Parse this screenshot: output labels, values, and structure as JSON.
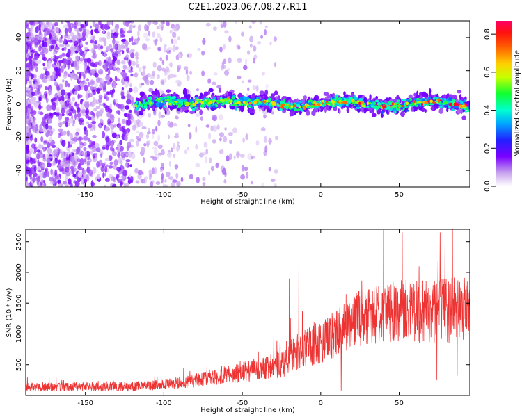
{
  "figure": {
    "title": "C2E1.2023.067.08.27.R11"
  },
  "chart_data": [
    {
      "type": "heatmap",
      "name": "spectrogram",
      "title": "",
      "xlabel": "Height of straight line (km)",
      "ylabel": "Frequency (Hz)",
      "xlim": [
        -188,
        95
      ],
      "ylim": [
        -50,
        50
      ],
      "xticks": [
        -150,
        -100,
        -50,
        0,
        50
      ],
      "xtick_labels": [
        "-150",
        "-100",
        "-50",
        "0",
        "50"
      ],
      "yticks": [
        -40,
        -20,
        0,
        20,
        40
      ],
      "ytick_labels": [
        "-40",
        "-20",
        "0",
        "20",
        "40"
      ],
      "signal": {
        "start_height": -118,
        "end_height": 95,
        "center_frequency": 0,
        "bandwidth_hz": 8,
        "peak_amplitude": 0.85
      },
      "noise_region": {
        "from_height": -188,
        "to_height": -28
      },
      "colorbar": {
        "label": "Normalized spectral amplitude",
        "range": [
          0.0,
          0.87
        ],
        "ticks": [
          0.0,
          0.2,
          0.4,
          0.6,
          0.8
        ],
        "tick_labels": [
          "0.0",
          "0.2",
          "0.4",
          "0.6",
          "0.8"
        ]
      }
    },
    {
      "type": "line",
      "name": "snr",
      "title": "",
      "xlabel": "Height of straight line (km)",
      "ylabel": "SNR (10 * v/v)",
      "xlim": [
        -188,
        95
      ],
      "ylim": [
        0,
        2700
      ],
      "xticks": [
        -150,
        -100,
        -50,
        0,
        50
      ],
      "xtick_labels": [
        "-150",
        "-100",
        "-50",
        "0",
        "50"
      ],
      "yticks": [
        500,
        1000,
        1500,
        2000,
        2500
      ],
      "ytick_labels": [
        "500",
        "1000",
        "1500",
        "2000",
        "2500"
      ],
      "color": "#ee3333",
      "trend": {
        "x": [
          -188,
          -150,
          -120,
          -100,
          -80,
          -60,
          -40,
          -25,
          -20,
          -10,
          0,
          10,
          20,
          30,
          40,
          60,
          80,
          95
        ],
        "y": [
          140,
          140,
          150,
          180,
          240,
          330,
          430,
          520,
          640,
          780,
          850,
          1000,
          1200,
          1300,
          1350,
          1380,
          1380,
          1400
        ]
      },
      "spread": {
        "x": [
          -188,
          -100,
          -60,
          -30,
          -10,
          10,
          30,
          60,
          95
        ],
        "y": [
          70,
          80,
          140,
          220,
          330,
          400,
          480,
          520,
          550
        ]
      },
      "spikes": [
        {
          "x": -20,
          "y": 1900
        },
        {
          "x": -14,
          "y": 2180
        },
        {
          "x": 13,
          "y": 80
        },
        {
          "x": 40,
          "y": 2690
        },
        {
          "x": 52,
          "y": 2650
        },
        {
          "x": 76,
          "y": 2650
        },
        {
          "x": 84,
          "y": 2700
        },
        {
          "x": 74,
          "y": 250
        },
        {
          "x": 87,
          "y": 320
        }
      ]
    }
  ]
}
